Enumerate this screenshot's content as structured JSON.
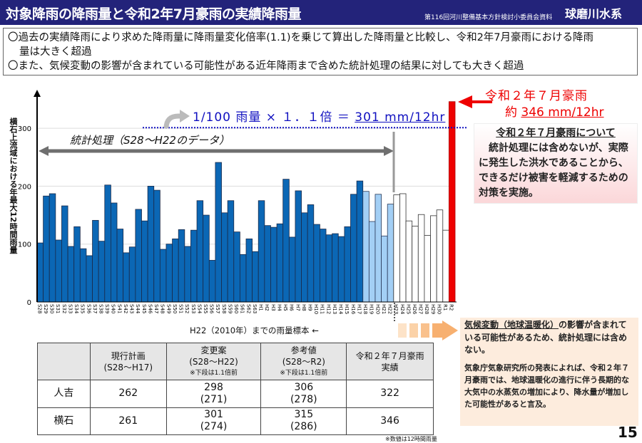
{
  "header": {
    "title": "対象降雨の降雨量と令和2年7月豪雨の実績降雨量",
    "meeting": "第116回河川整備基本方針検討小委員会資料",
    "basin": "球磨川水系"
  },
  "bullets": [
    "〇過去の実績降雨により求めた降雨量に降雨量変化倍率(1.1)を乗じて算出した降雨量と比較し、令和2年7月豪雨における降雨",
    "量は大きく超過",
    "〇また、気候変動の影響が含まれている可能性がある近年降雨まで含めた統計処理の結果に対しても大きく超過"
  ],
  "annotations": {
    "formula_prefix": "1/100 雨量 × １．１倍 ＝ ",
    "formula_value": "301 mm/12hr",
    "stat_label": "統計処理（S28～H22のデータ）",
    "red_title": "令和２年７月豪雨",
    "red_prefix": "約 ",
    "red_value": "346 mm/12hr",
    "sample_label": "H22（2010年）までの雨量標本 ←",
    "pink_heading": "令和２年７月豪雨について",
    "pink_body": "統計処理には含めないが、実際に発生した洪水であることから、できるだけ被害を軽減するための対策を実施。",
    "beige_u": "気候変動（地球温暖化）",
    "beige_rest": "の影響が含まれている可能性があるため、統計処理には含めない。",
    "beige_p2": "気象庁気象研究所の発表によれば、令和２年７月豪雨では、地球温暖化の進行に伴う長期的な大気中の水蒸気の増加により、降水量が増加した可能性があると言及。",
    "page_number": "15",
    "note": "※数値は12時間雨量"
  },
  "colors": {
    "stat": "#0b67b5",
    "recent_stat": "#a3cff5",
    "excluded": "#ffffff",
    "r2": "#ee0000",
    "formula": "#1010c0"
  },
  "chart_data": {
    "type": "bar",
    "ylabel": "横石上流域における年最大12時間雨量",
    "ylim": [
      0,
      350
    ],
    "yticks": [
      0,
      100,
      200,
      300
    ],
    "reference_line": 301,
    "categories": [
      "S28",
      "S29",
      "S30",
      "S31",
      "S32",
      "S33",
      "S34",
      "S35",
      "S36",
      "S37",
      "S38",
      "S39",
      "S40",
      "S41",
      "S42",
      "S43",
      "S44",
      "S45",
      "S46",
      "S47",
      "S48",
      "S49",
      "S50",
      "S51",
      "S52",
      "S53",
      "S54",
      "S55",
      "S56",
      "S57",
      "S58",
      "S59",
      "S60",
      "S61",
      "S62",
      "S63",
      "H1",
      "H2",
      "H3",
      "H4",
      "H5",
      "H6",
      "H7",
      "H8",
      "H9",
      "H10",
      "H11",
      "H12",
      "H13",
      "H14",
      "H15",
      "H16",
      "H17",
      "H18",
      "H19",
      "H20",
      "H21",
      "H22",
      "H23",
      "H24",
      "H25",
      "H26",
      "H27",
      "H28",
      "H29",
      "H30",
      "R1",
      "R2"
    ],
    "values": [
      102,
      183,
      187,
      107,
      166,
      96,
      130,
      92,
      80,
      141,
      105,
      202,
      171,
      126,
      85,
      95,
      160,
      140,
      200,
      193,
      91,
      100,
      109,
      125,
      96,
      124,
      175,
      150,
      72,
      241,
      154,
      175,
      121,
      82,
      109,
      87,
      175,
      132,
      129,
      135,
      212,
      112,
      192,
      154,
      168,
      134,
      126,
      116,
      118,
      113,
      130,
      186,
      209,
      191,
      139,
      186,
      114,
      169,
      185,
      187,
      140,
      131,
      151,
      115,
      149,
      159,
      124,
      346
    ],
    "groups": {
      "S28-H17": "stat",
      "H18-H22": "recent_stat",
      "H23-R1": "excluded",
      "R2": "r2"
    }
  },
  "table": {
    "headers": [
      {
        "l1": "",
        "l2": "",
        "note": ""
      },
      {
        "l1": "現行計画",
        "l2": "(S28～H17)",
        "note": ""
      },
      {
        "l1": "変更案",
        "l2": "(S28～H22)",
        "note": "※下段は1.1倍前"
      },
      {
        "l1": "参考値",
        "l2": "(S28～R2)",
        "note": "※下段は1.1倍前"
      },
      {
        "l1": "令和２年７月豪雨",
        "l2": "実績",
        "note": ""
      }
    ],
    "rows": [
      {
        "name": "人吉",
        "current": "262",
        "change": "298",
        "change_pre": "(271)",
        "ref": "306",
        "ref_pre": "(278)",
        "actual": "322"
      },
      {
        "name": "横石",
        "current": "261",
        "change": "301",
        "change_pre": "(274)",
        "ref": "315",
        "ref_pre": "(286)",
        "actual": "346"
      }
    ]
  }
}
